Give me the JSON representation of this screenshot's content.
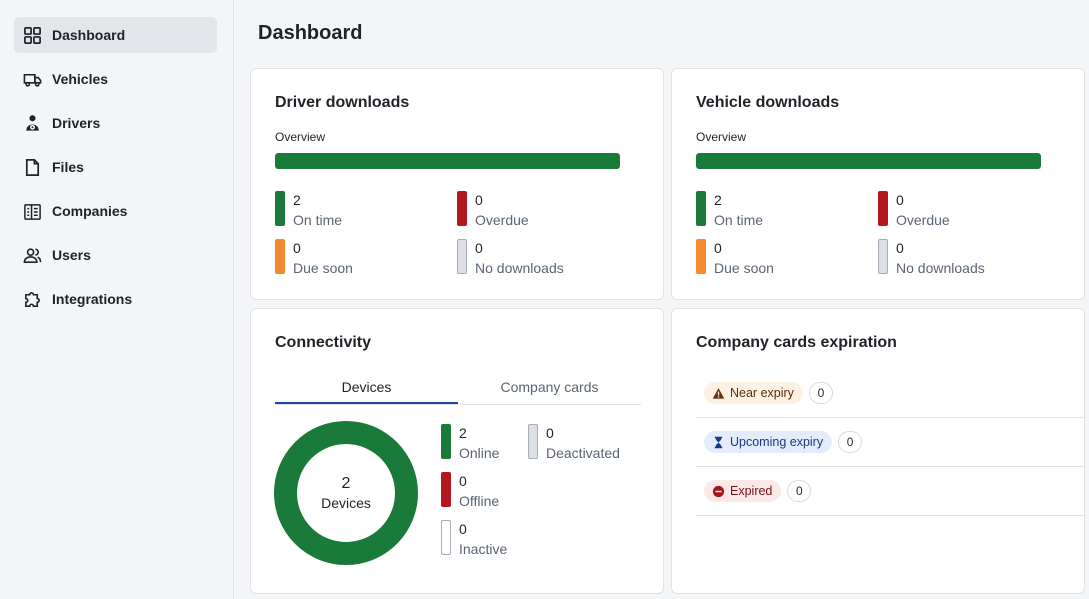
{
  "sidebar": {
    "items": [
      {
        "label": "Dashboard",
        "icon": "grid-icon",
        "active": true
      },
      {
        "label": "Vehicles",
        "icon": "truck-icon"
      },
      {
        "label": "Drivers",
        "icon": "driver-icon"
      },
      {
        "label": "Files",
        "icon": "file-icon"
      },
      {
        "label": "Companies",
        "icon": "building-icon"
      },
      {
        "label": "Users",
        "icon": "users-icon"
      },
      {
        "label": "Integrations",
        "icon": "puzzle-icon"
      }
    ]
  },
  "page": {
    "title": "Dashboard"
  },
  "colors": {
    "green": "#1a7a3a",
    "red": "#b3181f",
    "orange": "#f28b30",
    "grey": "#dde1e6",
    "tab_accent": "#1d47a5"
  },
  "driver_downloads": {
    "title": "Driver downloads",
    "overview_label": "Overview",
    "overview_fraction": 1.0,
    "stats": {
      "on_time": {
        "value": "2",
        "label": "On time"
      },
      "overdue": {
        "value": "0",
        "label": "Overdue"
      },
      "due_soon": {
        "value": "0",
        "label": "Due soon"
      },
      "no_downloads": {
        "value": "0",
        "label": "No downloads"
      }
    }
  },
  "vehicle_downloads": {
    "title": "Vehicle downloads",
    "overview_label": "Overview",
    "overview_fraction": 1.0,
    "stats": {
      "on_time": {
        "value": "2",
        "label": "On time"
      },
      "overdue": {
        "value": "0",
        "label": "Overdue"
      },
      "due_soon": {
        "value": "0",
        "label": "Due soon"
      },
      "no_downloads": {
        "value": "0",
        "label": "No downloads"
      }
    }
  },
  "connectivity": {
    "title": "Connectivity",
    "tabs": [
      {
        "label": "Devices",
        "active": true
      },
      {
        "label": "Company cards",
        "active": false
      }
    ],
    "donut": {
      "value": "2",
      "label": "Devices",
      "online_fraction": 1.0
    },
    "stats": {
      "online": {
        "value": "2",
        "label": "Online"
      },
      "deactivated": {
        "value": "0",
        "label": "Deactivated"
      },
      "offline": {
        "value": "0",
        "label": "Offline"
      },
      "inactive": {
        "value": "0",
        "label": "Inactive"
      }
    }
  },
  "company_cards": {
    "title": "Company cards expiration",
    "rows": [
      {
        "label": "Near expiry",
        "icon": "warning-icon",
        "count": "0"
      },
      {
        "label": "Upcoming expiry",
        "icon": "hourglass-icon",
        "count": "0"
      },
      {
        "label": "Expired",
        "icon": "minus-circle-icon",
        "count": "0"
      }
    ]
  }
}
